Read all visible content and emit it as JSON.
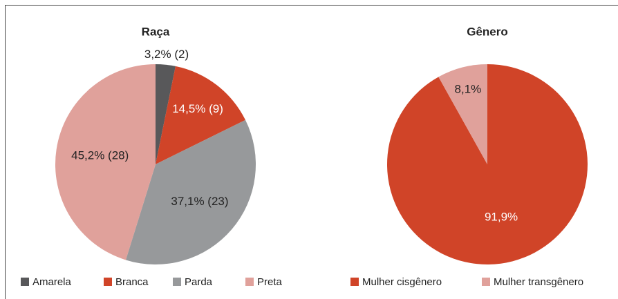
{
  "chart_data": [
    {
      "type": "pie",
      "title": "Raça",
      "categories": [
        "Amarela",
        "Branca",
        "Parda",
        "Preta"
      ],
      "values": [
        3.2,
        14.5,
        37.1,
        45.2
      ],
      "value_labels": [
        "3,2% (2)",
        "14,5% (9)",
        "37,1% (23)",
        "45,2% (28)"
      ],
      "colors": [
        "#58585a",
        "#d04428",
        "#97999b",
        "#e0a19b"
      ],
      "legend": "bottom"
    },
    {
      "type": "pie",
      "title": "Gênero",
      "categories": [
        "Mulher cisgênero",
        "Mulher transgênero"
      ],
      "values": [
        91.9,
        8.1
      ],
      "value_labels": [
        "91,9%",
        "8,1%"
      ],
      "colors": [
        "#d04428",
        "#e0a19b"
      ],
      "legend": "bottom"
    }
  ]
}
